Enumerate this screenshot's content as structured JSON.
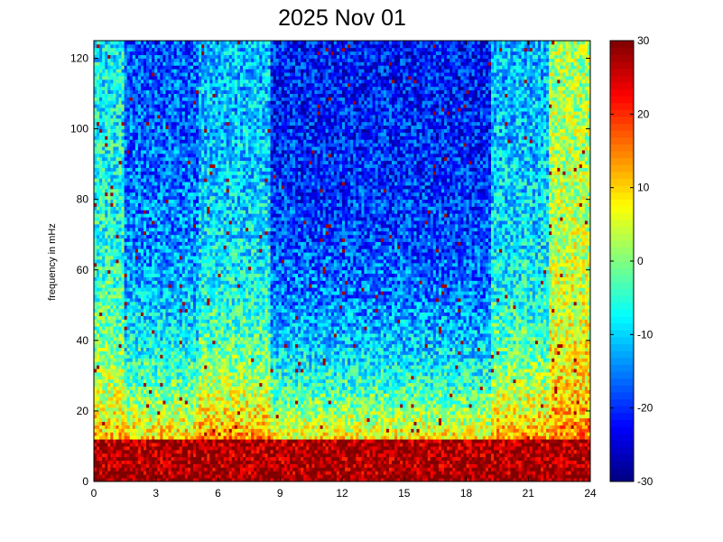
{
  "chart_data": {
    "type": "heatmap",
    "title": "2025 Nov 01",
    "xlabel": "",
    "ylabel": "frequency in mHz",
    "xlim": [
      0,
      24
    ],
    "ylim": [
      0,
      125
    ],
    "x_ticks": [
      0,
      3,
      6,
      9,
      12,
      15,
      18,
      21,
      24
    ],
    "y_ticks": [
      0,
      20,
      40,
      60,
      80,
      100,
      120
    ],
    "colorbar": {
      "colormap": "jet",
      "clim": [
        -30,
        30
      ],
      "ticks": [
        -30,
        -20,
        -10,
        0,
        10,
        20,
        30
      ]
    },
    "grid": false,
    "description_of_values": "Spectral power versus hour of day and frequency; strongest (about +30) below 10 mHz, lower power (about -15 to -25) at high frequencies during roughly 1.5-5 h and 8.5-19 h.",
    "approx_band_levels": [
      {
        "x_range": [
          0,
          1.5
        ],
        "high_freq_level": -8,
        "low_freq_level": 22
      },
      {
        "x_range": [
          1.5,
          5
        ],
        "high_freq_level": -18,
        "low_freq_level": 26
      },
      {
        "x_range": [
          5,
          8.5
        ],
        "high_freq_level": -12,
        "low_freq_level": 28
      },
      {
        "x_range": [
          8.5,
          19.2
        ],
        "high_freq_level": -22,
        "low_freq_level": 25
      },
      {
        "x_range": [
          19.2,
          22
        ],
        "high_freq_level": -12,
        "low_freq_level": 27
      },
      {
        "x_range": [
          22,
          24
        ],
        "high_freq_level": 2,
        "low_freq_level": 22
      }
    ]
  }
}
